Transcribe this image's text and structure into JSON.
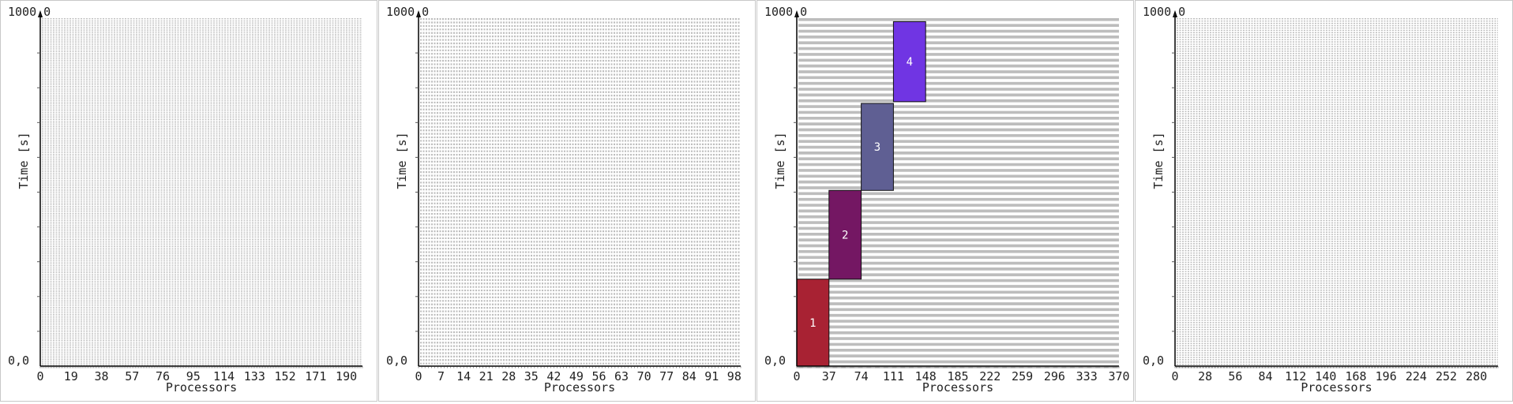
{
  "chart_data": [
    {
      "type": "gantt",
      "ylabel": "Time [s]",
      "xlabel": "Processors",
      "ylim": [
        0,
        1000
      ],
      "y_tick_labels": [
        "0,0",
        "1000,0"
      ],
      "x_ticks": [
        0,
        19,
        38,
        57,
        76,
        95,
        114,
        133,
        152,
        171,
        190
      ],
      "xlim": [
        0,
        200
      ],
      "processor_rows": 200,
      "jobs": []
    },
    {
      "type": "gantt",
      "ylabel": "Time [s]",
      "xlabel": "Processors",
      "ylim": [
        0,
        1000
      ],
      "y_tick_labels": [
        "0,0",
        "1000,0"
      ],
      "x_ticks": [
        0,
        7,
        14,
        21,
        28,
        35,
        42,
        49,
        56,
        63,
        70,
        77,
        84,
        91,
        98
      ],
      "xlim": [
        0,
        100
      ],
      "processor_rows": 100,
      "jobs": []
    },
    {
      "type": "gantt",
      "ylabel": "Time [s]",
      "xlabel": "Processors",
      "ylim": [
        0,
        1000
      ],
      "y_tick_labels": [
        "0,0",
        "1000,0"
      ],
      "x_ticks": [
        0,
        37,
        74,
        111,
        148,
        185,
        222,
        259,
        296,
        333,
        370
      ],
      "xlim": [
        0,
        370
      ],
      "processor_rows": 60,
      "jobs": [
        {
          "label": "1",
          "x_start": 0,
          "x_end": 37,
          "t_start": 0,
          "t_end": 250,
          "color": "#a82233"
        },
        {
          "label": "2",
          "x_start": 37,
          "x_end": 74,
          "t_start": 250,
          "t_end": 505,
          "color": "#741763"
        },
        {
          "label": "3",
          "x_start": 74,
          "x_end": 111,
          "t_start": 505,
          "t_end": 755,
          "color": "#5f5f93"
        },
        {
          "label": "4",
          "x_start": 111,
          "x_end": 148,
          "t_start": 760,
          "t_end": 990,
          "color": "#7035e3"
        }
      ]
    },
    {
      "type": "gantt",
      "ylabel": "Time [s]",
      "xlabel": "Processors",
      "ylim": [
        0,
        1000
      ],
      "y_tick_labels": [
        "0,0",
        "1000,0"
      ],
      "x_ticks": [
        0,
        28,
        56,
        84,
        112,
        140,
        168,
        196,
        224,
        252,
        280
      ],
      "xlim": [
        0,
        300
      ],
      "processor_rows": 150,
      "jobs": []
    }
  ]
}
